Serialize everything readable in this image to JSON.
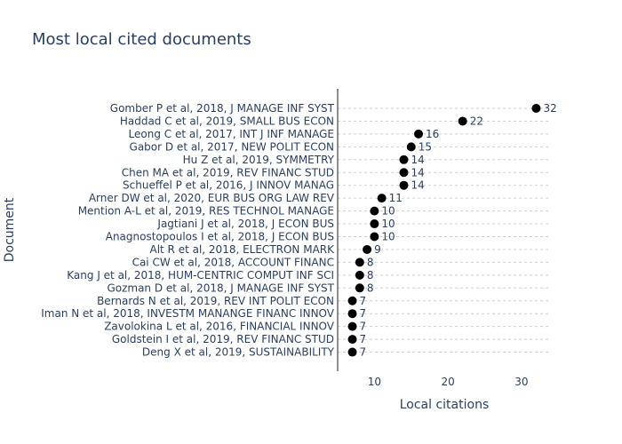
{
  "chart_data": {
    "type": "scatter",
    "title": "Most local cited documents",
    "xlabel": "Local citations",
    "ylabel": "Document",
    "xlim": [
      5,
      34
    ],
    "xticks": [
      10,
      20,
      30
    ],
    "marker_color": "#000000",
    "grid": true,
    "categories": [
      "Gomber P et al, 2018, J MANAGE INF SYST",
      "Haddad C et al, 2019, SMALL BUS ECON",
      "Leong C et al, 2017, INT J INF MANAGE",
      "Gabor D et al, 2017, NEW POLIT ECON",
      "Hu Z et al, 2019, SYMMETRY",
      "Chen MA et al, 2019, REV FINANC STUD",
      "Schueffel P et al, 2016, J INNOV MANAG",
      "Arner DW et al, 2020, EUR BUS ORG LAW REV",
      "Mention A-L et al, 2019, RES TECHNOL MANAGE",
      "Jagtiani J et al, 2018, J ECON BUS",
      "Anagnostopoulos I et al, 2018, J ECON BUS",
      "Alt R et al, 2018, ELECTRON MARK",
      "Cai CW et al, 2018, ACCOUNT FINANC",
      "Kang J et al, 2018, HUM-CENTRIC COMPUT INF SCI",
      "Gozman D et al, 2018, J MANAGE INF SYST",
      "Bernards N et al, 2019, REV INT POLIT ECON",
      "Iman N et al, 2018, INVESTM MANANGE FINANC INNOV",
      "Zavolokina L et al, 2016, FINANCIAL INNOV",
      "Goldstein I et al, 2019, REV FINANC STUD",
      "Deng X et al, 2019, SUSTAINABILITY"
    ],
    "values": [
      32,
      22,
      16,
      15,
      14,
      14,
      14,
      11,
      10,
      10,
      10,
      9,
      8,
      8,
      8,
      7,
      7,
      7,
      7,
      7
    ]
  }
}
